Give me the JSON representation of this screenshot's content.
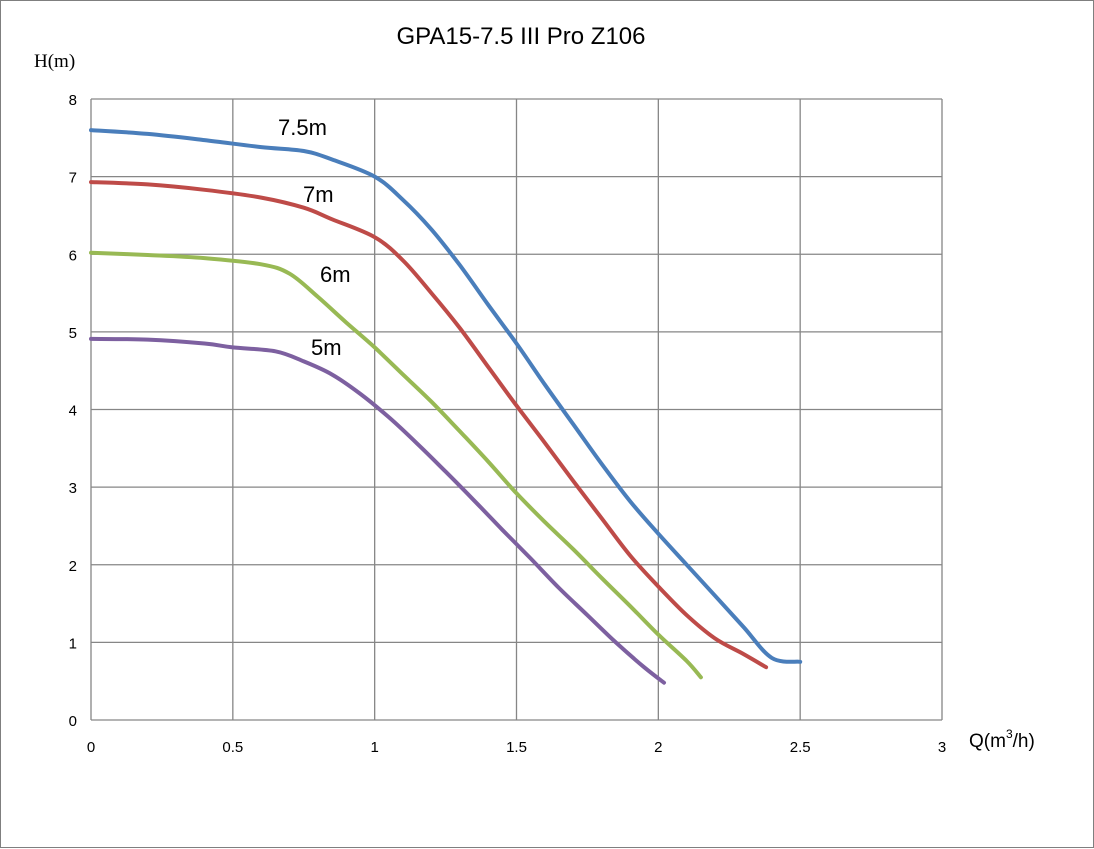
{
  "chart_data": {
    "type": "line",
    "title": "GPA15-7.5 III Pro Z106",
    "ylabel": "H(m)",
    "xlabel": {
      "base": "Q(m",
      "sup": "3",
      "tail": "/h)"
    },
    "xlim": [
      0,
      3
    ],
    "ylim": [
      0,
      8
    ],
    "xticks": [
      "0",
      "0.5",
      "1",
      "1.5",
      "2",
      "2.5",
      "3"
    ],
    "yticks": [
      "0",
      "1",
      "2",
      "3",
      "4",
      "5",
      "6",
      "7",
      "8"
    ],
    "grid": true,
    "legend": "inline curve labels",
    "series": [
      {
        "name": "7.5m",
        "color": "#4a7ebb",
        "x": [
          0,
          0.2,
          0.4,
          0.6,
          0.75,
          0.85,
          1.0,
          1.1,
          1.2,
          1.3,
          1.4,
          1.5,
          1.6,
          1.7,
          1.8,
          1.9,
          2.0,
          2.1,
          2.2,
          2.3,
          2.4,
          2.5
        ],
        "y": [
          7.6,
          7.55,
          7.47,
          7.38,
          7.33,
          7.22,
          7.0,
          6.7,
          6.32,
          5.86,
          5.35,
          4.85,
          4.32,
          3.81,
          3.3,
          2.82,
          2.4,
          2.0,
          1.6,
          1.2,
          0.8,
          0.75
        ]
      },
      {
        "name": "7m",
        "color": "#be4b48",
        "x": [
          0,
          0.2,
          0.4,
          0.6,
          0.75,
          0.85,
          1.0,
          1.1,
          1.2,
          1.3,
          1.4,
          1.5,
          1.6,
          1.7,
          1.8,
          1.9,
          2.0,
          2.1,
          2.2,
          2.3,
          2.38
        ],
        "y": [
          6.93,
          6.9,
          6.83,
          6.73,
          6.6,
          6.45,
          6.22,
          5.92,
          5.5,
          5.05,
          4.55,
          4.05,
          3.57,
          3.08,
          2.6,
          2.12,
          1.72,
          1.35,
          1.05,
          0.85,
          0.68
        ]
      },
      {
        "name": "6m",
        "color": "#98b954",
        "x": [
          0,
          0.2,
          0.4,
          0.6,
          0.7,
          0.8,
          0.9,
          1.0,
          1.1,
          1.2,
          1.3,
          1.4,
          1.5,
          1.6,
          1.7,
          1.8,
          1.9,
          2.0,
          2.1,
          2.15
        ],
        "y": [
          6.02,
          5.99,
          5.95,
          5.87,
          5.75,
          5.45,
          5.12,
          4.8,
          4.45,
          4.1,
          3.72,
          3.33,
          2.92,
          2.55,
          2.2,
          1.83,
          1.47,
          1.1,
          0.76,
          0.55
        ]
      },
      {
        "name": "5m",
        "color": "#7d60a0",
        "x": [
          0,
          0.2,
          0.4,
          0.5,
          0.65,
          0.75,
          0.85,
          0.95,
          1.05,
          1.15,
          1.25,
          1.35,
          1.45,
          1.55,
          1.65,
          1.75,
          1.85,
          1.95,
          2.02
        ],
        "y": [
          4.91,
          4.9,
          4.85,
          4.8,
          4.75,
          4.62,
          4.45,
          4.2,
          3.9,
          3.56,
          3.2,
          2.83,
          2.45,
          2.08,
          1.7,
          1.35,
          1.0,
          0.68,
          0.48
        ]
      }
    ]
  }
}
